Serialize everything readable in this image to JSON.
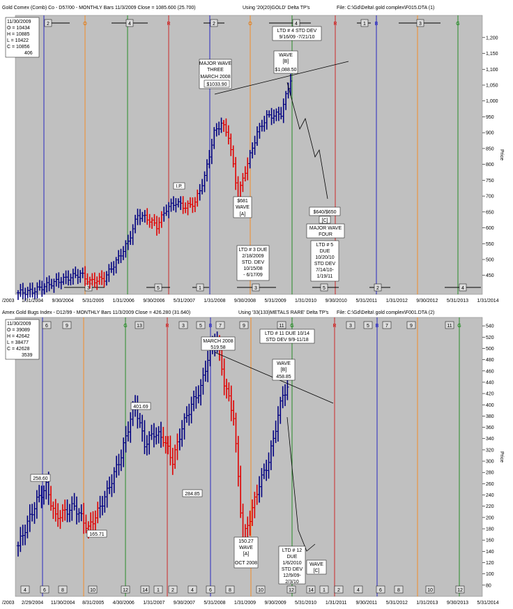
{
  "chart_data": [
    {
      "type": "ohlc",
      "header": {
        "left": "Gold Comex (Comb) Co - D57/00 - MONTHLY Bars  11/3/2009 Close = 1085.600 (25.700)",
        "middle": "Using '20(20)GOLD' Delta TP's",
        "right": "File: C:\\Gd\\Delta\\ gold complex\\F015.DTA (1)"
      },
      "info_box": [
        "11/30/2009",
        "O = 10434",
        "H = 10885",
        "L = 10422",
        "C = 10856",
        "406"
      ],
      "ylabel": "Price",
      "ylim": [
        390,
        1270
      ],
      "y_ticks": [
        450,
        500,
        550,
        600,
        650,
        700,
        750,
        800,
        850,
        900,
        950,
        1000,
        1050,
        1100,
        1150,
        1200
      ],
      "y_tick_labels": [
        "450",
        "500",
        "550",
        "600",
        "650",
        "700",
        "750",
        "800",
        "850",
        "900",
        "950",
        "1,000",
        "1,050",
        "1,100",
        "1,150",
        "1,200"
      ],
      "x_tick_labels": [
        "/2003",
        "1/31/2004",
        "9/30/2004",
        "5/31/2005",
        "1/31/2006",
        "9/30/2006",
        "5/31/2007",
        "1/31/2008",
        "9/30/2008",
        "5/31/2009",
        "1/31/2010",
        "9/30/2010",
        "5/31/2011",
        "1/31/2012",
        "9/30/2012",
        "5/31/2013",
        "1/31/2014"
      ],
      "top_markers": [
        {
          "label": "2",
          "kind": "bracket"
        },
        {
          "label": "O",
          "kind": "letter",
          "color": "#e07000"
        },
        {
          "label": "4",
          "kind": "bracket"
        },
        {
          "label": "R",
          "kind": "letter",
          "color": "#d00000"
        },
        {
          "label": "2",
          "kind": "bracket"
        },
        {
          "label": "O",
          "kind": "letter",
          "color": "#e07000"
        },
        {
          "label": "4",
          "kind": "bracket"
        },
        {
          "label": "R",
          "kind": "letter",
          "color": "#d00000"
        },
        {
          "label": "1",
          "kind": "bracket"
        },
        {
          "label": "B",
          "kind": "letter",
          "color": "#0000c0"
        },
        {
          "label": "3",
          "kind": "bracket"
        },
        {
          "label": "G",
          "kind": "letter",
          "color": "#008000"
        }
      ],
      "bottom_markers": [
        "3",
        "5",
        "1",
        "3",
        "5",
        "2",
        "4"
      ],
      "annotations": [
        {
          "lines": [
            "I.P."
          ]
        },
        {
          "lines": [
            "MAJOR WAVE",
            "THREE",
            "MARCH 2008",
            "$1033.90"
          ]
        },
        {
          "lines": [
            "WAVE",
            "[B]",
            "$1,088.50"
          ]
        },
        {
          "lines": [
            "LTD # 4 STD DEV",
            "9/16/09 -7/21/10"
          ]
        },
        {
          "lines": [
            "$681",
            "WAVE",
            "[A]"
          ]
        },
        {
          "lines": [
            "$640/$650",
            "[C]",
            "MAJOR WAVE",
            "FOUR"
          ]
        },
        {
          "lines": [
            "LTD # 3 DUE",
            "2/18/2009",
            "STD. DEV",
            "10/15/08",
            "- 6/17/09"
          ]
        },
        {
          "lines": [
            "LTD # 5",
            "DUE",
            "10/20/10",
            "STD DEV",
            "7/14/10-",
            "1/19/11"
          ]
        }
      ]
    },
    {
      "type": "ohlc",
      "header": {
        "left": "Amex Gold Bugs Index - D12/99 - MONTHLY Bars  11/3/2009 Close = 426.280 (31.640)",
        "middle": "Using '33(133)METALS RARE' Delta TP's",
        "right": "File: C:\\Gd\\Delta\\ gold complex\\F001.DTA (2)"
      },
      "info_box": [
        "11/30/2009",
        "O = 39089",
        "H = 42642",
        "L = 38477",
        "C = 42628",
        "3539"
      ],
      "ylabel": "Price",
      "ylim": [
        60,
        555
      ],
      "y_ticks": [
        80,
        100,
        120,
        140,
        160,
        180,
        200,
        220,
        240,
        260,
        280,
        300,
        320,
        340,
        360,
        380,
        400,
        420,
        440,
        460,
        480,
        500,
        520,
        540
      ],
      "y_tick_labels": [
        "80",
        "100",
        "120",
        "140",
        "160",
        "180",
        "200",
        "220",
        "240",
        "260",
        "280",
        "300",
        "320",
        "340",
        "360",
        "380",
        "400",
        "420",
        "440",
        "460",
        "480",
        "500",
        "520",
        "540"
      ],
      "x_tick_labels": [
        "/2003",
        "2/29/2004",
        "11/30/2004",
        "8/31/2005",
        "4/30/2006",
        "1/31/2007",
        "9/30/2007",
        "5/31/2008",
        "1/31/2009",
        "9/30/2009",
        "5/31/2010",
        "1/31/2011",
        "9/30/2011",
        "5/31/2012",
        "1/31/2013",
        "9/30/2013",
        "5/31/2014"
      ],
      "top_markers": [
        {
          "label": "10",
          "kind": "box"
        },
        {
          "label": "6",
          "kind": "box"
        },
        {
          "label": "9",
          "kind": "box"
        },
        {
          "label": "G",
          "kind": "letter",
          "color": "#008000"
        },
        {
          "label": "13",
          "kind": "box"
        },
        {
          "label": "R",
          "kind": "letter",
          "color": "#d00000"
        },
        {
          "label": "3",
          "kind": "box"
        },
        {
          "label": "5",
          "kind": "box"
        },
        {
          "label": "B",
          "kind": "letter",
          "color": "#0000c0"
        },
        {
          "label": "7",
          "kind": "box"
        },
        {
          "label": "9",
          "kind": "box"
        },
        {
          "label": "11",
          "kind": "box"
        },
        {
          "label": "G",
          "kind": "letter",
          "color": "#008000"
        },
        {
          "label": "R",
          "kind": "letter",
          "color": "#d00000"
        },
        {
          "label": "3",
          "kind": "box"
        },
        {
          "label": "5",
          "kind": "box"
        },
        {
          "label": "B",
          "kind": "letter",
          "color": "#0000c0"
        },
        {
          "label": "7",
          "kind": "box"
        },
        {
          "label": "9",
          "kind": "box"
        },
        {
          "label": "11",
          "kind": "box"
        },
        {
          "label": "G",
          "kind": "letter",
          "color": "#008000"
        }
      ],
      "bottom_markers": [
        "4",
        "6",
        "8",
        "10",
        "12",
        "14",
        "1",
        "2",
        "4",
        "6",
        "8",
        "10",
        "12",
        "14",
        "1",
        "2",
        "4",
        "6",
        "8",
        "10",
        "12"
      ],
      "annotations": [
        {
          "lines": [
            "258.60"
          ]
        },
        {
          "lines": [
            "165.71"
          ]
        },
        {
          "lines": [
            "401.69"
          ]
        },
        {
          "lines": [
            "284.85"
          ]
        },
        {
          "lines": [
            "MARCH 2008",
            "519.58"
          ]
        },
        {
          "lines": [
            "LTD # 11 DUE 10/14",
            "STD DEV 9/9-11/18"
          ]
        },
        {
          "lines": [
            "WAVE",
            "[B]",
            "458.85"
          ]
        },
        {
          "lines": [
            "150.27",
            "WAVE",
            "[A]",
            "OCT 2008"
          ]
        },
        {
          "lines": [
            "LTD # 12",
            "DUE",
            "1/6/2010",
            "STD DEV",
            "12/9/09-",
            "2/3/10"
          ]
        },
        {
          "lines": [
            "WAVE",
            "[C]"
          ]
        }
      ]
    }
  ]
}
